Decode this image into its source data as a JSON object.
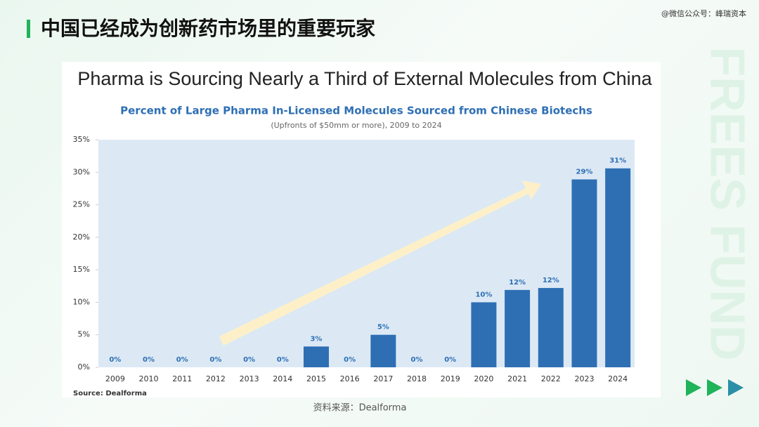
{
  "header": {
    "title": "中国已经成为创新药市场里的重要玩家",
    "watermark": "@微信公众号：峰瑞资本",
    "side_mark": "FREES FUND"
  },
  "chart_data": {
    "type": "bar",
    "heading": "Pharma is Sourcing Nearly a Third of External Molecules from China",
    "title": "Percent of Large Pharma In-Licensed Molecules Sourced from Chinese Biotechs",
    "subtitle": "(Upfronts of $50mm or more), 2009 to 2024",
    "source": "Source: Dealforma",
    "categories": [
      "2009",
      "2010",
      "2011",
      "2012",
      "2013",
      "2014",
      "2015",
      "2016",
      "2017",
      "2018",
      "2019",
      "2020",
      "2021",
      "2022",
      "2023",
      "2024"
    ],
    "values": [
      0,
      0,
      0,
      0,
      0,
      0,
      3.2,
      0,
      5,
      0,
      0,
      10,
      11.9,
      12.2,
      28.9,
      30.6
    ],
    "value_labels": [
      "0%",
      "0%",
      "0%",
      "0%",
      "0%",
      "0%",
      "3%",
      "0%",
      "5%",
      "0%",
      "0%",
      "10%",
      "12%",
      "12%",
      "29%",
      "31%"
    ],
    "color": "#2e6fb4",
    "ylim": [
      0,
      35
    ],
    "yticks": [
      {
        "value": 0,
        "label": "0%"
      },
      {
        "value": 5,
        "label": "5%"
      },
      {
        "value": 10,
        "label": "10%"
      },
      {
        "value": 15,
        "label": "15%"
      },
      {
        "value": 20,
        "label": "20%"
      },
      {
        "value": 25,
        "label": "25%"
      },
      {
        "value": 30,
        "label": "30%"
      },
      {
        "value": 35,
        "label": "35%"
      }
    ]
  },
  "caption": "资料来源：Dealforma"
}
